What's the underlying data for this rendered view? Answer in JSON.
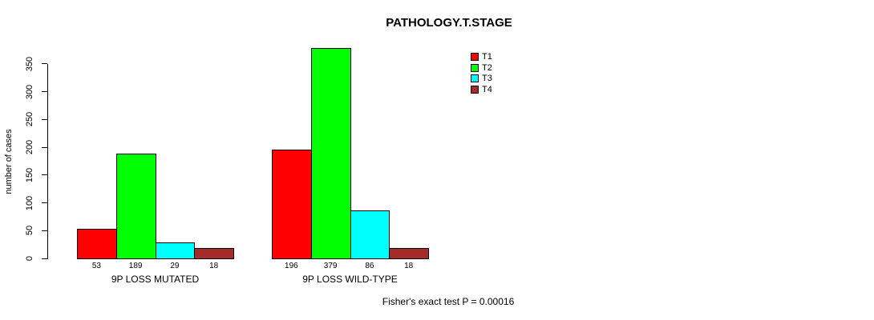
{
  "chart_data": {
    "type": "bar",
    "title": "PATHOLOGY.T.STAGE",
    "xlabel": "",
    "ylabel": "number of cases",
    "ylim": [
      0,
      350
    ],
    "yticks": [
      0,
      50,
      100,
      150,
      200,
      250,
      300,
      350
    ],
    "grid": false,
    "categories": [
      "9P LOSS MUTATED",
      "9P LOSS WILD-TYPE"
    ],
    "series_names": [
      "T1",
      "T2",
      "T3",
      "T4"
    ],
    "series": [
      {
        "name": "T1",
        "values": [
          53,
          196
        ]
      },
      {
        "name": "T2",
        "values": [
          189,
          379
        ]
      },
      {
        "name": "T3",
        "values": [
          29,
          86
        ]
      },
      {
        "name": "T4",
        "values": [
          18,
          18
        ]
      }
    ],
    "bar_value_labels": [
      [
        "53",
        "189",
        "29",
        "18"
      ],
      [
        "196",
        "379",
        "86",
        "18"
      ]
    ],
    "colors": {
      "T1": "#FF0000",
      "T2": "#00FF00",
      "T3": "#00FFFF",
      "T4": "#A52A2A"
    },
    "legend": {
      "position": "top-right",
      "entries": [
        {
          "label": "T1",
          "color": "#FF0000"
        },
        {
          "label": "T2",
          "color": "#00FF00"
        },
        {
          "label": "T3",
          "color": "#00FFFF"
        },
        {
          "label": "T4",
          "color": "#A52A2A"
        }
      ]
    },
    "annotation": "Fisher's exact test P = 0.00016"
  }
}
